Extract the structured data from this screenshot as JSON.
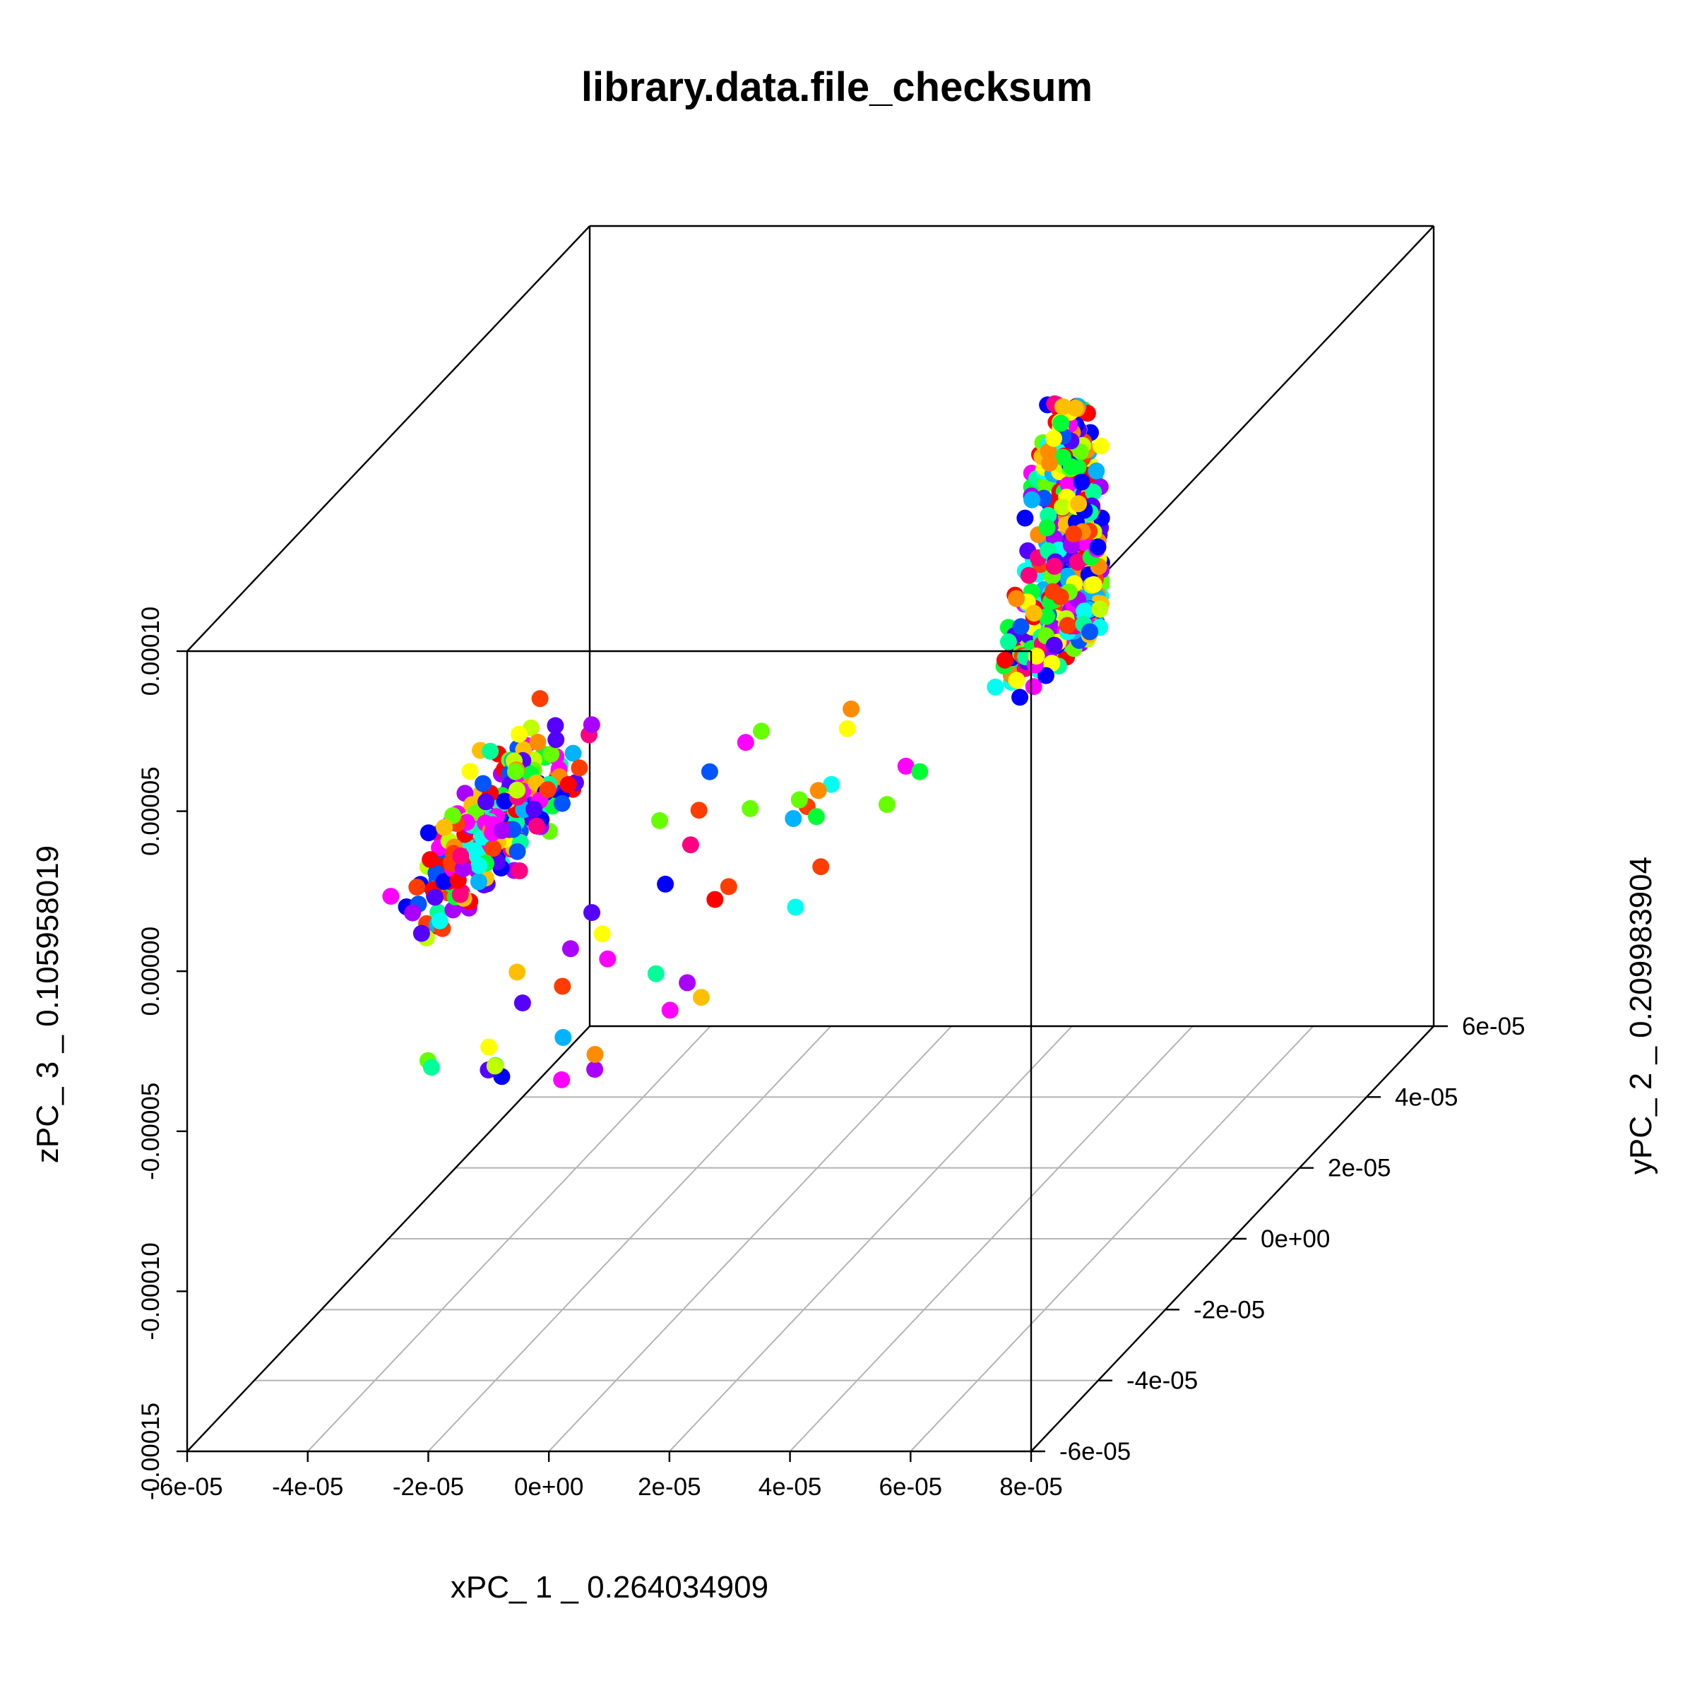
{
  "chart_data": {
    "type": "scatter",
    "title": "library.data.file_checksum",
    "xlabel": "xPC_ 1 _ 0.264034909",
    "ylabel": "yPC_ 2 _ 0.209983904",
    "zlabel": "zPC_ 3 _ 0.105958019",
    "x_ticks": [
      "-6e-05",
      "-4e-05",
      "-2e-05",
      "0e+00",
      "2e-05",
      "4e-05",
      "6e-05",
      "8e-05"
    ],
    "y_ticks": [
      "-6e-05",
      "-4e-05",
      "-2e-05",
      "0e+00",
      "2e-05",
      "4e-05",
      "6e-05"
    ],
    "z_ticks": [
      "-0.00015",
      "-0.00010",
      "-0.00005",
      "0.00000",
      "0.00005",
      "0.00010"
    ],
    "xlim": [
      -6e-05,
      8e-05
    ],
    "ylim": [
      -6e-05,
      6e-05
    ],
    "zlim": [
      -0.00015,
      0.0001
    ],
    "projection": "3d-oblique",
    "grid": "floor only",
    "palette": [
      "#ff0000",
      "#ff3d00",
      "#ff8c00",
      "#ffbf00",
      "#ffff00",
      "#bfff00",
      "#66ff00",
      "#00ff33",
      "#00ff99",
      "#00ffee",
      "#00b3ff",
      "#0055ff",
      "#0000ff",
      "#5500ff",
      "#aa00ff",
      "#ff00ff",
      "#ff0080"
    ],
    "clusters": [
      {
        "x_range": [
          -5.5e-05,
          -2.5e-05
        ],
        "y_range": [
          -5.7e-05,
          5.7e-05
        ],
        "z_range": [
          -6.3e-05,
          2.4e-05
        ],
        "approx_points": 260
      },
      {
        "x_range": [
          -3e-05,
          8e-06
        ],
        "y_range": [
          -6e-05,
          6e-05
        ],
        "z_range": [
          -5e-05,
          -4.5e-05
        ],
        "approx_points": 45
      },
      {
        "x_range": [
          2.5e-05,
          7e-05
        ],
        "y_range": [
          -3e-05,
          5e-05
        ],
        "z_range": [
          2e-05,
          0.000132
        ],
        "approx_points": 600
      }
    ]
  }
}
